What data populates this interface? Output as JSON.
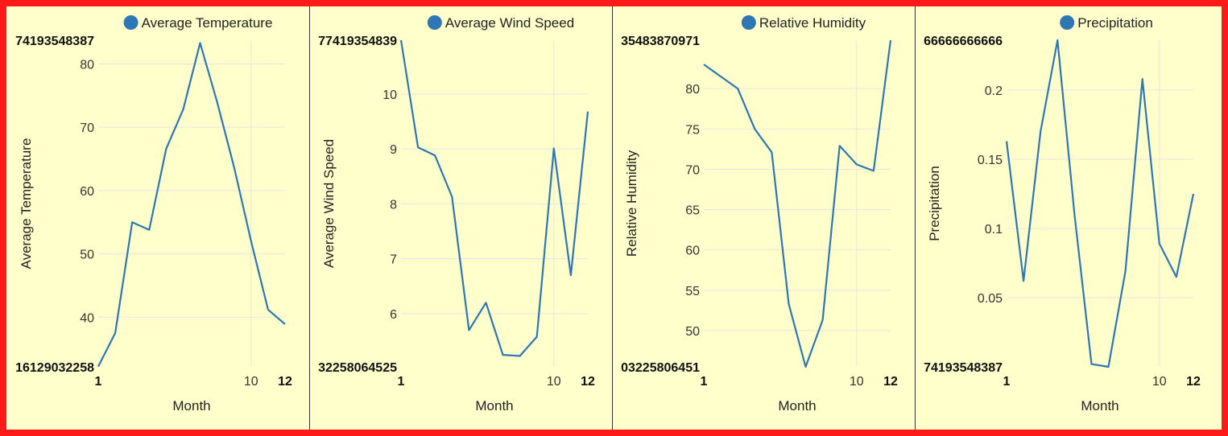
{
  "colors": {
    "series": "#2e76b4",
    "grid": "#e5e5e5",
    "frame": "#ff1a1a",
    "background": "#ffffcc",
    "divider": "#333333"
  },
  "chart_data": [
    {
      "type": "line",
      "legend": "Average Temperature",
      "xlabel": "Month",
      "ylabel": "Average Temperature",
      "x": [
        1,
        2,
        3,
        4,
        5,
        6,
        7,
        8,
        9,
        10,
        11,
        12
      ],
      "values": [
        32.2,
        37.5,
        55.0,
        53.8,
        66.6,
        72.8,
        83.3,
        74.0,
        63.7,
        52.0,
        41.2,
        38.9
      ],
      "ylim": [
        32.16129032258,
        83.74193548387
      ],
      "yticks": [
        40,
        50,
        60,
        70,
        80
      ],
      "xticks": [
        10
      ],
      "xlim": [
        1,
        12
      ],
      "y_edge_labels": {
        "top": "74193548387",
        "bottom": "16129032258"
      },
      "x_edge_labels": {
        "left": "1",
        "right": "12"
      }
    },
    {
      "type": "line",
      "legend": "Average Wind Speed",
      "xlabel": "Month",
      "ylabel": "Average Wind Speed",
      "x": [
        1,
        2,
        3,
        4,
        5,
        6,
        7,
        8,
        9,
        10,
        11,
        12
      ],
      "values": [
        10.98,
        9.03,
        8.88,
        8.13,
        5.7,
        6.2,
        5.25,
        5.23,
        5.58,
        9.01,
        6.7,
        9.68
      ],
      "ylim": [
        5.0322580645,
        10.98
      ],
      "yticks": [
        6,
        7,
        8,
        9,
        10
      ],
      "xticks": [
        10
      ],
      "xlim": [
        1,
        12
      ],
      "y_edge_labels": {
        "top": "77419354839",
        "bottom": "32258064525"
      },
      "x_edge_labels": {
        "left": "1",
        "right": "12"
      }
    },
    {
      "type": "line",
      "legend": "Relative Humidity",
      "xlabel": "Month",
      "ylabel": "Relative Humidity",
      "x": [
        1,
        2,
        3,
        4,
        5,
        6,
        7,
        8,
        9,
        10,
        11,
        12
      ],
      "values": [
        83.0,
        81.5,
        80.0,
        75.0,
        72.1,
        53.3,
        45.5,
        51.3,
        72.9,
        70.6,
        69.8,
        86.0
      ],
      "ylim": [
        45.5,
        86.0
      ],
      "yticks": [
        50,
        55,
        60,
        65,
        70,
        75,
        80
      ],
      "xticks": [
        10
      ],
      "xlim": [
        1,
        12
      ],
      "y_edge_labels": {
        "top": "35483870971",
        "bottom": "03225806451"
      },
      "x_edge_labels": {
        "left": "1",
        "right": "12"
      }
    },
    {
      "type": "line",
      "legend": "Precipitation",
      "xlabel": "Month",
      "ylabel": "Precipitation",
      "x": [
        1,
        2,
        3,
        4,
        5,
        6,
        7,
        8,
        9,
        10,
        11,
        12
      ],
      "values": [
        0.163,
        0.062,
        0.17,
        0.236,
        0.11,
        0.002,
        0.0,
        0.069,
        0.208,
        0.089,
        0.065,
        0.125
      ],
      "ylim": [
        0.0,
        0.236
      ],
      "yticks": [
        0.05,
        0.1,
        0.15,
        0.2
      ],
      "xticks": [
        10
      ],
      "xlim": [
        1,
        12
      ],
      "y_edge_labels": {
        "top": "66666666666",
        "bottom": "74193548387"
      },
      "x_edge_labels": {
        "left": "1",
        "right": "12"
      }
    }
  ]
}
